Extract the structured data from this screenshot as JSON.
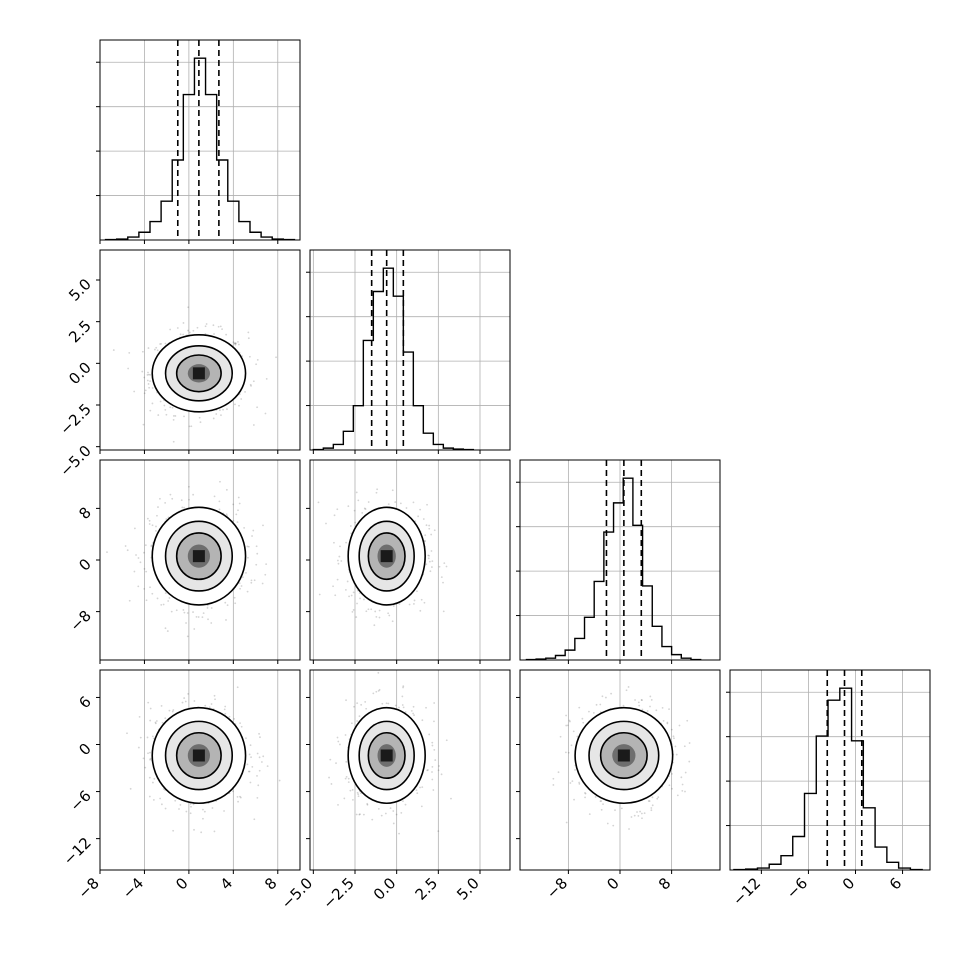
{
  "chart_data": {
    "type": "corner",
    "n_params": 4,
    "grid": true,
    "axis_labels": [
      "",
      "",
      "",
      ""
    ],
    "colors": {
      "line": "#000000",
      "grid": "#b0b0b0",
      "points": "#555555"
    },
    "ranges": [
      [
        -8.0,
        10.0
      ],
      [
        -5.2,
        6.8
      ],
      [
        -15.5,
        15.5
      ],
      [
        -16.0,
        9.5
      ]
    ],
    "ticks": [
      {
        "values": [
          -8,
          -4,
          0,
          4,
          8
        ],
        "labels": [
          "−8",
          "−4",
          "0",
          "4",
          "8"
        ]
      },
      {
        "values": [
          -5.0,
          -2.5,
          0.0,
          2.5,
          5.0
        ],
        "labels": [
          "−5.0",
          "−2.5",
          "0.0",
          "2.5",
          "5.0"
        ]
      },
      {
        "values": [
          -8,
          0,
          8
        ],
        "labels": [
          "−8",
          "0",
          "8"
        ]
      },
      {
        "values": [
          -12,
          -6,
          0,
          6
        ],
        "labels": [
          "−12",
          "−6",
          "0",
          "6"
        ]
      }
    ],
    "quantiles": [
      [
        -1.0,
        0.9,
        2.7
      ],
      [
        -1.5,
        -0.6,
        0.4
      ],
      [
        -2.1,
        0.6,
        3.3
      ],
      [
        -3.6,
        -1.4,
        0.8
      ]
    ],
    "histograms": [
      {
        "bin_edges": [
          -7.5,
          -6.5,
          -5.5,
          -4.5,
          -3.5,
          -2.5,
          -1.5,
          -0.5,
          0.5,
          1.5,
          2.5,
          3.5,
          4.5,
          5.5,
          6.5,
          7.5,
          8.5,
          9.5
        ],
        "counts": [
          1,
          2,
          6,
          16,
          38,
          80,
          165,
          300,
          375,
          300,
          165,
          80,
          38,
          16,
          6,
          2,
          1
        ]
      },
      {
        "bin_edges": [
          -5.0,
          -4.4,
          -3.8,
          -3.2,
          -2.6,
          -2.0,
          -1.4,
          -0.8,
          -0.2,
          0.4,
          1.0,
          1.6,
          2.2,
          2.8,
          3.4,
          4.0,
          4.6
        ],
        "counts": [
          1,
          4,
          12,
          40,
          95,
          235,
          340,
          390,
          330,
          210,
          95,
          36,
          12,
          4,
          2,
          1
        ]
      },
      {
        "bin_edges": [
          -14.5,
          -13,
          -11.5,
          -10,
          -8.5,
          -7,
          -5.5,
          -4,
          -2.5,
          -1,
          0.5,
          2,
          3.5,
          5,
          6.5,
          8,
          9.5,
          11,
          12.5
        ],
        "counts": [
          1,
          2,
          4,
          10,
          22,
          48,
          95,
          175,
          285,
          350,
          405,
          300,
          165,
          75,
          30,
          12,
          4,
          1
        ]
      },
      {
        "bin_edges": [
          -15.5,
          -14,
          -12.5,
          -11,
          -9.5,
          -8,
          -6.5,
          -5,
          -3.5,
          -2,
          -0.5,
          1,
          2.5,
          4,
          5.5,
          7,
          8.5
        ],
        "counts": [
          1,
          2,
          4,
          12,
          30,
          70,
          160,
          280,
          355,
          380,
          270,
          130,
          48,
          16,
          4,
          1
        ]
      }
    ],
    "means": [
      0.9,
      -0.6,
      0.6,
      -1.4
    ],
    "sigmas": [
      2.0,
      1.1,
      3.6,
      2.9
    ]
  }
}
